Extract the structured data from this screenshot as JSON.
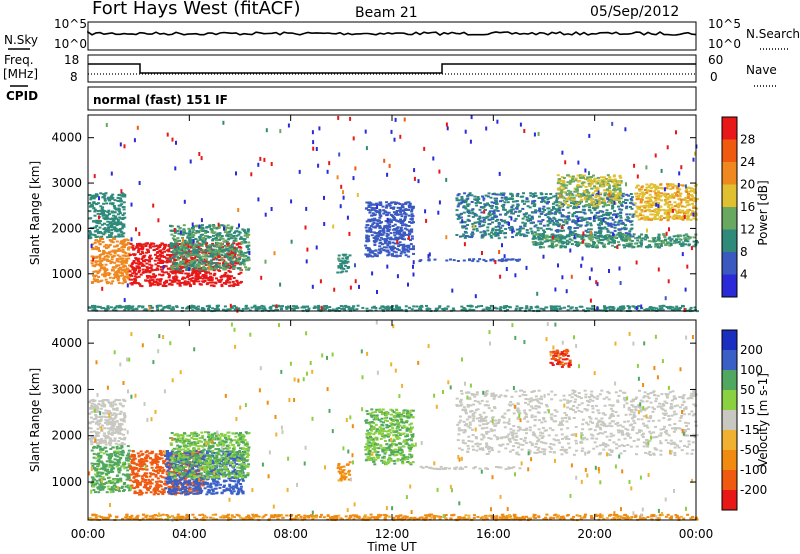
{
  "header": {
    "title": "Fort Hays West (fitACF)",
    "beam": "Beam 21",
    "date": "05/Sep/2012"
  },
  "top_panels": {
    "nsky_label": "N.Sky",
    "nsearch_label": "N.Search",
    "count_tick_high": "10^5",
    "count_tick_low": "10^0",
    "freq_label": "Freq.",
    "freq_unit": "[MHz]",
    "freq_ticks": [
      "18",
      "8"
    ],
    "nave_label": "Nave",
    "nave_ticks": [
      "60",
      "0"
    ],
    "cpid_label": "CPID",
    "cpid_value": "normal (fast) 151 IF"
  },
  "chart_data": [
    {
      "type": "heatmap",
      "name": "power",
      "ylabel": "Slant Range [km]",
      "ylim": [
        180,
        4500
      ],
      "xlim_hours": [
        0,
        24
      ],
      "yticks": [
        "1000",
        "2000",
        "3000",
        "4000"
      ],
      "colorbar": {
        "label": "Power [dB]",
        "ticks": [
          "4",
          "8",
          "12",
          "16",
          "20",
          "24",
          "28"
        ],
        "colors": [
          "#2a2ad8",
          "#3a5ac0",
          "#2f8a7a",
          "#68a860",
          "#e0c030",
          "#f08820",
          "#f05a10",
          "#e81818"
        ]
      },
      "regions": [
        {
          "t": [
            0.0,
            1.4
          ],
          "r": [
            1800,
            2800
          ],
          "v": 9
        },
        {
          "t": [
            0.1,
            1.6
          ],
          "r": [
            800,
            1800
          ],
          "v": 21
        },
        {
          "t": [
            1.6,
            6.0
          ],
          "r": [
            750,
            1700
          ],
          "v": 28
        },
        {
          "t": [
            3.2,
            6.3
          ],
          "r": [
            1100,
            2100
          ],
          "v": 11
        },
        {
          "t": [
            9.8,
            10.3
          ],
          "r": [
            1050,
            1450
          ],
          "v": 10
        },
        {
          "t": [
            10.9,
            12.8
          ],
          "r": [
            1400,
            2600
          ],
          "v": 6
        },
        {
          "t": [
            13.0,
            17.0
          ],
          "r": [
            1300,
            1350
          ],
          "v": 6
        },
        {
          "t": [
            14.5,
            21.5
          ],
          "r": [
            1800,
            2800
          ],
          "v": 8
        },
        {
          "t": [
            17.5,
            24.0
          ],
          "r": [
            1600,
            1900
          ],
          "v": 11
        },
        {
          "t": [
            18.5,
            21.0
          ],
          "r": [
            2500,
            3200
          ],
          "v": 15
        },
        {
          "t": [
            21.5,
            24.0
          ],
          "r": [
            2200,
            3000
          ],
          "v": 18
        },
        {
          "t": [
            0.0,
            24.0
          ],
          "r": [
            200,
            320
          ],
          "v": 9
        }
      ]
    },
    {
      "type": "heatmap",
      "name": "velocity",
      "ylabel": "Slant Range [km]",
      "xlabel": "Time UT",
      "ylim": [
        180,
        4500
      ],
      "xlim_hours": [
        0,
        24
      ],
      "xticks": [
        "00:00",
        "04:00",
        "08:00",
        "12:00",
        "16:00",
        "20:00",
        "00:00"
      ],
      "yticks": [
        "1000",
        "2000",
        "3000",
        "4000"
      ],
      "colorbar": {
        "label": "Velocity [m s-1]",
        "ticks": [
          "200",
          "100",
          "50",
          "15",
          "-15",
          "-50",
          "-100",
          "-200"
        ],
        "colors": [
          "#1a2fc0",
          "#3a60c8",
          "#50a860",
          "#8ad040",
          "#c8c8c0",
          "#f0b030",
          "#f08a10",
          "#f05a10",
          "#e81818"
        ]
      },
      "regions": [
        {
          "t": [
            0.0,
            1.4
          ],
          "r": [
            1800,
            2800
          ],
          "v": 0
        },
        {
          "t": [
            0.1,
            1.6
          ],
          "r": [
            800,
            1800
          ],
          "v": 60
        },
        {
          "t": [
            1.6,
            4.5
          ],
          "r": [
            750,
            1700
          ],
          "v": -180
        },
        {
          "t": [
            3.0,
            6.1
          ],
          "r": [
            750,
            1700
          ],
          "v": 120
        },
        {
          "t": [
            3.2,
            6.3
          ],
          "r": [
            1100,
            2100
          ],
          "v": 50
        },
        {
          "t": [
            9.8,
            10.3
          ],
          "r": [
            1050,
            1450
          ],
          "v": -60
        },
        {
          "t": [
            10.9,
            12.8
          ],
          "r": [
            1400,
            2600
          ],
          "v": 50
        },
        {
          "t": [
            13.0,
            17.0
          ],
          "r": [
            1300,
            1350
          ],
          "v": 0
        },
        {
          "t": [
            14.5,
            24.0
          ],
          "r": [
            1600,
            3000
          ],
          "v": 0
        },
        {
          "t": [
            18.2,
            19.0
          ],
          "r": [
            3500,
            3900
          ],
          "v": -200
        },
        {
          "t": [
            0.0,
            24.0
          ],
          "r": [
            200,
            320
          ],
          "v": -60
        }
      ]
    }
  ]
}
